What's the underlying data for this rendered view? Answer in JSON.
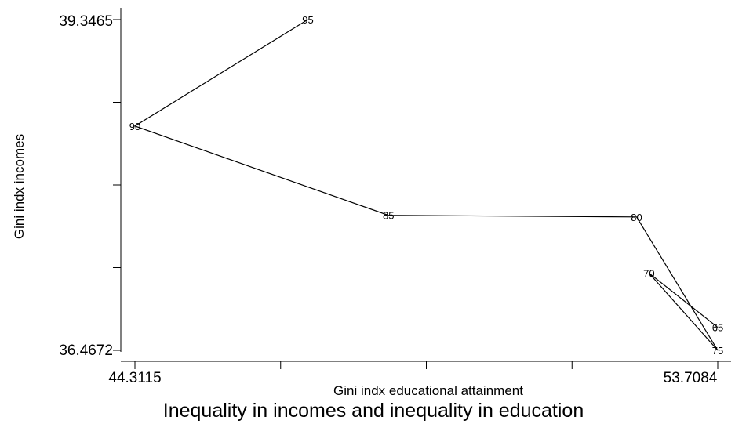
{
  "chart_data": {
    "type": "line",
    "title": "Inequality in incomes and inequality in education",
    "xlabel": "Gini indx educational attainment",
    "ylabel": "Gini indx incomes",
    "xlim": [
      44.3115,
      53.7084
    ],
    "ylim": [
      36.4672,
      39.3465
    ],
    "x_tick_labels": [
      "44.3115",
      "53.7084"
    ],
    "y_tick_labels": [
      "39.3465",
      "36.4672"
    ],
    "grid": false,
    "points": [
      {
        "label": "65",
        "x": 53.7084,
        "y": 36.6672
      },
      {
        "label": "70",
        "x": 52.6,
        "y": 37.1395
      },
      {
        "label": "75",
        "x": 53.7084,
        "y": 36.4672
      },
      {
        "label": "80",
        "x": 52.4,
        "y": 37.6283
      },
      {
        "label": "85",
        "x": 48.4,
        "y": 37.6425
      },
      {
        "label": "90",
        "x": 44.3115,
        "y": 38.4195
      },
      {
        "label": "95",
        "x": 47.1,
        "y": 39.3465
      }
    ]
  }
}
